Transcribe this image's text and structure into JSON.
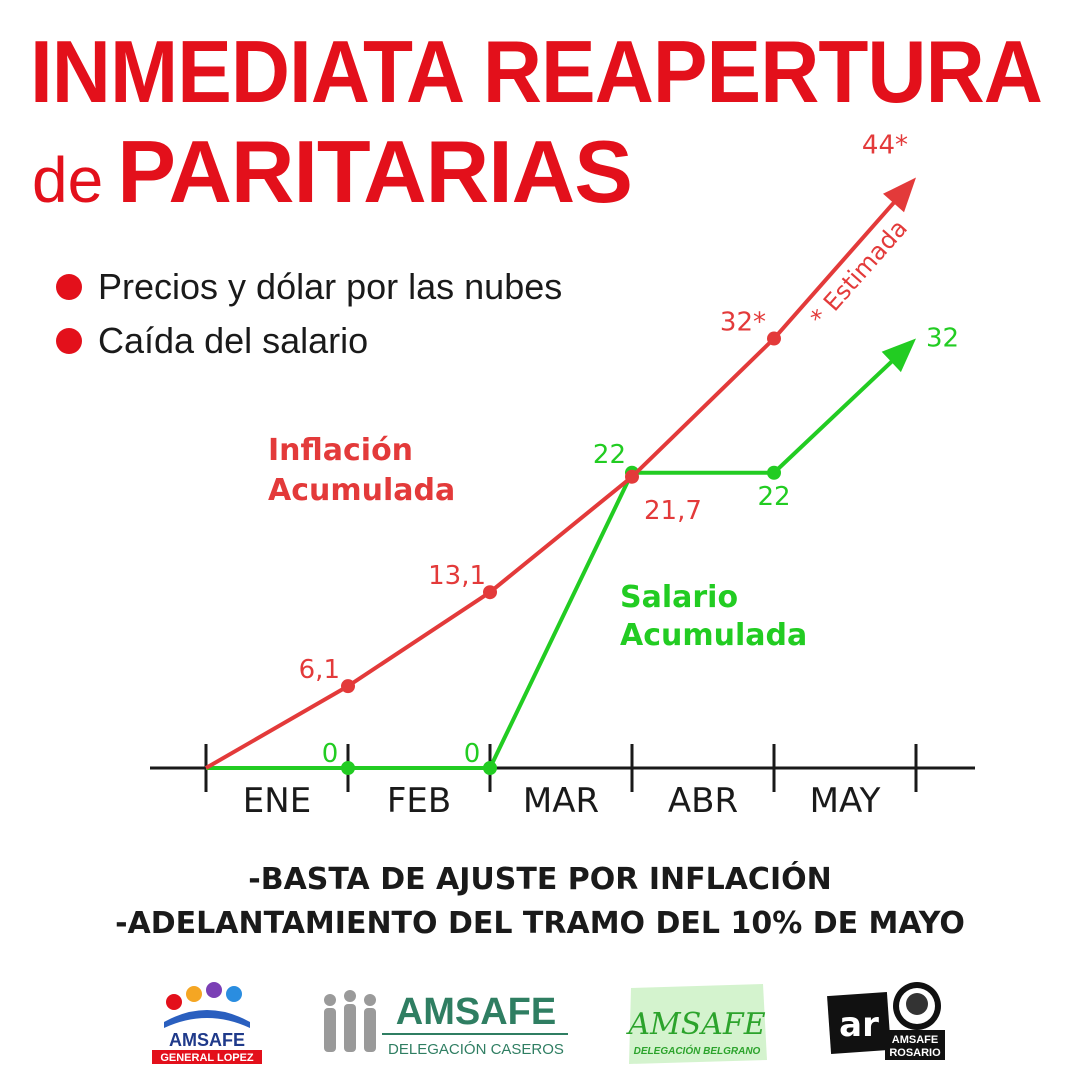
{
  "header": {
    "title_line1": "INMEDIATA REAPERTURA",
    "title_line2_prefix": "de",
    "title_line2_main": "PARITARIAS"
  },
  "bullets": [
    "Precios y dólar por las nubes",
    "Caída del salario"
  ],
  "colors": {
    "red": "#e3101b",
    "inflation": "#e33a3a",
    "salary": "#22cc22",
    "text": "#1a1a1a"
  },
  "chart_data": {
    "type": "line",
    "categories": [
      "ENE",
      "FEB",
      "MAR",
      "ABR",
      "MAY"
    ],
    "series": [
      {
        "name": "Inflación Acumulada",
        "points": [
          {
            "x": "ENE-start",
            "y": 0,
            "label": ""
          },
          {
            "x": "FEB-start",
            "y": 6.1,
            "label": "6,1"
          },
          {
            "x": "MAR-start",
            "y": 13.1,
            "label": "13,1"
          },
          {
            "x": "ABR-start",
            "y": 21.7,
            "label": "21,7"
          },
          {
            "x": "MAY-start",
            "y": 32,
            "label": "32*"
          },
          {
            "x": "MAY-end",
            "y": 44,
            "label": "44*"
          }
        ],
        "annotation": "* Estimada"
      },
      {
        "name": "Salario Acumulada",
        "points": [
          {
            "x": "ENE-start",
            "y": 0,
            "label": ""
          },
          {
            "x": "FEB-start",
            "y": 0,
            "label": "0"
          },
          {
            "x": "MAR-start",
            "y": 0,
            "label": "0"
          },
          {
            "x": "ABR-start",
            "y": 22,
            "label": "22"
          },
          {
            "x": "MAY-start",
            "y": 22,
            "label": "22"
          },
          {
            "x": "MAY-end",
            "y": 32,
            "label": "32"
          }
        ]
      }
    ],
    "series_labels": {
      "inflation": [
        "Inflación",
        "Acumulada"
      ],
      "salary": [
        "Salario",
        "Acumulada"
      ]
    }
  },
  "footer": {
    "line1": "-BASTA DE AJUSTE POR INFLACIÓN",
    "line2": "-ADELANTAMIENTO DEL TRAMO DEL 10% DE MAYO"
  },
  "logos": [
    {
      "name": "AMSAFE",
      "sub": "GENERAL LOPEZ"
    },
    {
      "name": "AMSAFE",
      "sub": "DELEGACIÓN CASEROS"
    },
    {
      "name": "AMSAFE",
      "sub": "DELEGACIÓN BELGRANO"
    },
    {
      "name": "AMSAFE",
      "sub": "ROSARIO",
      "mark": "ar"
    }
  ]
}
